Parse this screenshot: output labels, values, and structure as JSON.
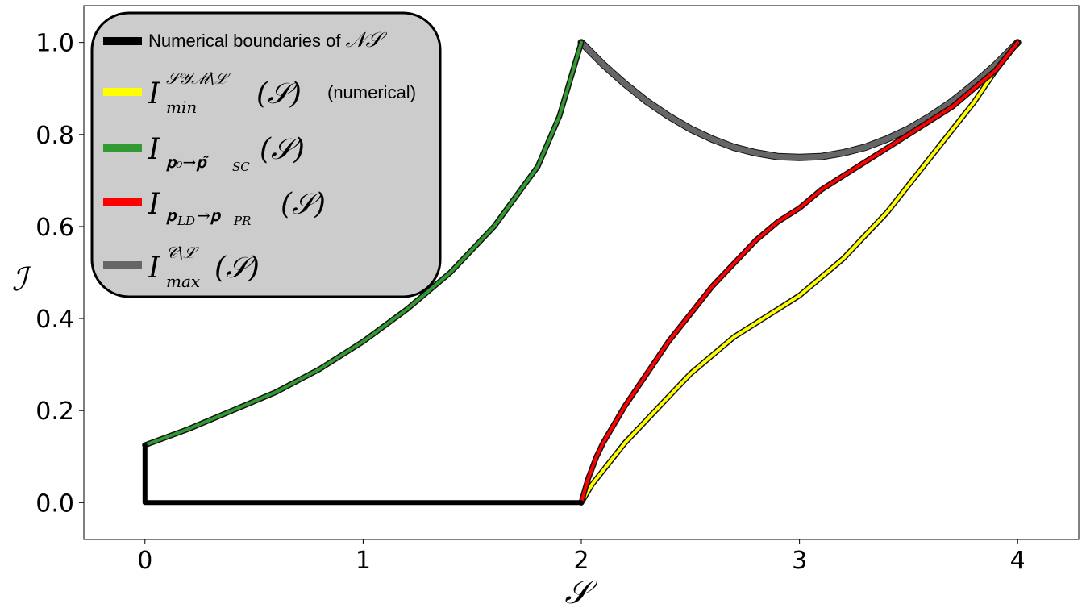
{
  "chart_data": {
    "type": "line",
    "xlabel": "𝒮",
    "ylabel": "ℐ",
    "xlim": [
      -0.28,
      4.28
    ],
    "ylim": [
      -0.08,
      1.08
    ],
    "xticks": [
      0,
      1,
      2,
      3,
      4
    ],
    "yticks": [
      0.0,
      0.2,
      0.4,
      0.6,
      0.8,
      1.0
    ],
    "xtick_labels": [
      "0",
      "1",
      "2",
      "3",
      "4"
    ],
    "ytick_labels": [
      "0.0",
      "0.2",
      "0.4",
      "0.6",
      "0.8",
      "1.0"
    ],
    "grid": false,
    "legend_placement": "top-left",
    "series": [
      {
        "name": "Numerical boundaries of 𝒩𝒮",
        "color": "#000000",
        "x": [
          0,
          0,
          2
        ],
        "y": [
          0.125,
          0,
          0
        ]
      },
      {
        "name": "I_min^{𝒮𝒴ℳ\\ℒ}(𝒮) (numerical)",
        "color": "#ffff00",
        "x": [
          2.0,
          2.05,
          2.1,
          2.2,
          2.3,
          2.4,
          2.5,
          2.6,
          2.7,
          2.8,
          2.9,
          3.0,
          3.1,
          3.2,
          3.3,
          3.4,
          3.5,
          3.6,
          3.7,
          3.8,
          3.9,
          4.0
        ],
        "y": [
          0.0,
          0.04,
          0.07,
          0.13,
          0.18,
          0.23,
          0.28,
          0.32,
          0.36,
          0.39,
          0.42,
          0.45,
          0.49,
          0.53,
          0.58,
          0.63,
          0.69,
          0.75,
          0.81,
          0.87,
          0.94,
          1.0
        ]
      },
      {
        "name": "I_{p0→p̃SC}(𝒮)",
        "color": "#339933",
        "x": [
          0.0,
          0.2,
          0.4,
          0.6,
          0.8,
          1.0,
          1.2,
          1.4,
          1.6,
          1.8,
          1.9,
          2.0
        ],
        "y": [
          0.125,
          0.16,
          0.2,
          0.24,
          0.29,
          0.35,
          0.42,
          0.5,
          0.6,
          0.73,
          0.84,
          1.0
        ]
      },
      {
        "name": "I_{pLD→pPR}(𝒮)",
        "color": "#ff0000",
        "x": [
          2.0,
          2.03,
          2.07,
          2.1,
          2.2,
          2.3,
          2.4,
          2.5,
          2.6,
          2.7,
          2.8,
          2.9,
          3.0,
          3.1,
          3.2,
          3.3,
          3.4,
          3.5,
          3.6,
          3.7,
          3.8,
          3.9,
          4.0
        ],
        "y": [
          0.0,
          0.05,
          0.1,
          0.13,
          0.21,
          0.28,
          0.35,
          0.41,
          0.47,
          0.52,
          0.57,
          0.61,
          0.64,
          0.68,
          0.71,
          0.74,
          0.77,
          0.8,
          0.83,
          0.86,
          0.9,
          0.94,
          1.0
        ]
      },
      {
        "name": "I_max^{𝒞\\ℒ}(𝒮)",
        "color": "#666666",
        "x": [
          2.0,
          2.1,
          2.2,
          2.3,
          2.4,
          2.5,
          2.6,
          2.7,
          2.8,
          2.9,
          3.0,
          3.1,
          3.2,
          3.3,
          3.4,
          3.5,
          3.6,
          3.7,
          3.8,
          3.9,
          4.0
        ],
        "y": [
          1.0,
          0.952,
          0.91,
          0.872,
          0.84,
          0.812,
          0.79,
          0.772,
          0.76,
          0.752,
          0.75,
          0.752,
          0.76,
          0.772,
          0.79,
          0.812,
          0.84,
          0.872,
          0.91,
          0.952,
          1.0
        ]
      }
    ],
    "legend": {
      "entries": [
        {
          "color": "#000000",
          "text": "Numerical boundaries of ",
          "math": "𝒩𝒮"
        },
        {
          "color": "#ffff00",
          "base": "I",
          "sup": "𝒮𝒴ℳ\\ℒ",
          "sub": "min",
          "arg": "(𝒮)",
          "suffix": "(numerical)"
        },
        {
          "color": "#339933",
          "base": "I",
          "sub": "𝐩₀→𝐩̃",
          "sub2": "SC",
          "arg": "(𝒮)"
        },
        {
          "color": "#ff0000",
          "base": "I",
          "sub": "𝐩",
          "sub2": "LD",
          "sub3": "→𝐩",
          "sub4": "PR",
          "arg": "(𝒮)"
        },
        {
          "color": "#666666",
          "base": "I",
          "sup": "𝒞\\ℒ",
          "sub": "max",
          "arg": "(𝒮)"
        }
      ]
    }
  }
}
